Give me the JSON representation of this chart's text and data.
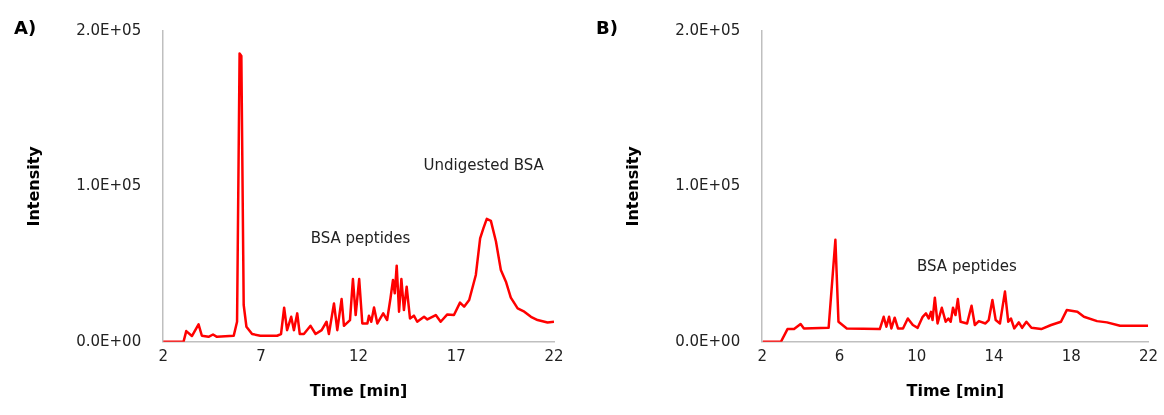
{
  "chart_data": [
    {
      "type": "line",
      "title": "A)",
      "xlabel": "Time [min]",
      "ylabel": "Intensity",
      "xlim": [
        2,
        22
      ],
      "xticks": [
        2,
        7,
        12,
        17,
        22
      ],
      "ylim": [
        0,
        200000
      ],
      "yticks": [
        {
          "value": 0,
          "label": "0.0E+00"
        },
        {
          "value": 100000,
          "label": "1.0E+05"
        },
        {
          "value": 200000,
          "label": "2.0E+05"
        }
      ],
      "grid": false,
      "legend": false,
      "marker": "none",
      "line_style": "solid",
      "annotations": [
        "BSA peptides",
        "Undigested BSA"
      ],
      "series": [
        {
          "color": "#ff0000",
          "x": [
            2,
            3.04,
            3.18,
            3.47,
            3.81,
            3.98,
            4.32,
            4.55,
            4.75,
            5.61,
            5.78,
            5.91,
            6.0,
            6.12,
            6.26,
            6.55,
            6.97,
            7.83,
            8.03,
            8.19,
            8.34,
            8.55,
            8.69,
            8.86,
            8.99,
            9.2,
            9.54,
            9.8,
            10.11,
            10.36,
            10.48,
            10.74,
            10.91,
            11.13,
            11.25,
            11.56,
            11.71,
            11.85,
            12.03,
            12.19,
            12.45,
            12.53,
            12.65,
            12.79,
            12.96,
            13.26,
            13.46,
            13.63,
            13.76,
            13.85,
            13.95,
            14.07,
            14.19,
            14.32,
            14.46,
            14.63,
            14.83,
            15.0,
            15.35,
            15.52,
            15.95,
            16.2,
            16.54,
            16.88,
            17.19,
            17.4,
            17.66,
            18.0,
            18.22,
            18.39,
            18.56,
            18.77,
            19.03,
            19.28,
            19.54,
            19.79,
            20.14,
            20.48,
            20.82,
            21.16,
            21.67,
            22
          ],
          "values": [
            0,
            0,
            6900,
            3700,
            11200,
            3900,
            3200,
            4700,
            3200,
            3900,
            12900,
            185600,
            184000,
            23700,
            9700,
            5000,
            3900,
            3900,
            5000,
            21900,
            7500,
            16100,
            7500,
            18300,
            5000,
            5000,
            10300,
            5000,
            7500,
            12900,
            5000,
            24700,
            7500,
            27500,
            10300,
            14000,
            40400,
            17200,
            40400,
            11800,
            11800,
            16800,
            12900,
            22100,
            11800,
            18300,
            14000,
            27900,
            39800,
            31200,
            49000,
            19400,
            40400,
            20400,
            35500,
            15000,
            16800,
            12900,
            16100,
            14400,
            17200,
            12900,
            17600,
            17200,
            25200,
            22600,
            26900,
            43000,
            66600,
            73100,
            79100,
            77800,
            64500,
            46200,
            38700,
            28400,
            21500,
            19400,
            16100,
            14000,
            12400,
            12900
          ]
        }
      ]
    },
    {
      "type": "line",
      "title": "B)",
      "xlabel": "Time [min]",
      "ylabel": "Intensity",
      "xlim": [
        2,
        22
      ],
      "xticks": [
        2,
        6,
        10,
        14,
        18,
        22
      ],
      "ylim": [
        0,
        200000
      ],
      "yticks": [
        {
          "value": 0,
          "label": "0.0E+00"
        },
        {
          "value": 100000,
          "label": "1.0E+05"
        },
        {
          "value": 200000,
          "label": "2.0E+05"
        }
      ],
      "grid": false,
      "legend": false,
      "marker": "none",
      "line_style": "solid",
      "annotations": [
        "BSA peptides"
      ],
      "series": [
        {
          "color": "#ff0000",
          "x": [
            2.03,
            2.97,
            3.31,
            3.65,
            3.99,
            4.16,
            5.44,
            5.79,
            5.95,
            6.38,
            8.09,
            8.29,
            8.43,
            8.57,
            8.69,
            8.86,
            9.03,
            9.29,
            9.54,
            9.8,
            10.05,
            10.31,
            10.48,
            10.62,
            10.74,
            10.82,
            10.94,
            11.08,
            11.3,
            11.5,
            11.64,
            11.76,
            11.88,
            12.01,
            12.13,
            12.27,
            12.61,
            12.84,
            13.01,
            13.22,
            13.56,
            13.73,
            13.92,
            14.09,
            14.31,
            14.57,
            14.74,
            14.88,
            15.05,
            15.29,
            15.46,
            15.68,
            15.94,
            16.45,
            16.96,
            17.47,
            17.77,
            18.32,
            18.66,
            19.34,
            19.85,
            20.53,
            21.21,
            21.98
          ],
          "values": [
            0,
            0,
            8200,
            8200,
            11400,
            8600,
            9000,
            65600,
            12900,
            8600,
            8200,
            16100,
            9700,
            16100,
            8600,
            15500,
            8600,
            8600,
            15000,
            10800,
            9000,
            16100,
            18300,
            15000,
            19300,
            14000,
            28400,
            11800,
            21900,
            12900,
            15000,
            12900,
            21900,
            17200,
            27500,
            12900,
            11800,
            23200,
            10800,
            13300,
            11800,
            14000,
            26900,
            14000,
            11800,
            32300,
            12900,
            15000,
            8600,
            12500,
            9000,
            12900,
            9000,
            8200,
            10800,
            12900,
            20400,
            19400,
            16100,
            13300,
            12500,
            10300,
            10300,
            10300
          ]
        }
      ]
    }
  ]
}
